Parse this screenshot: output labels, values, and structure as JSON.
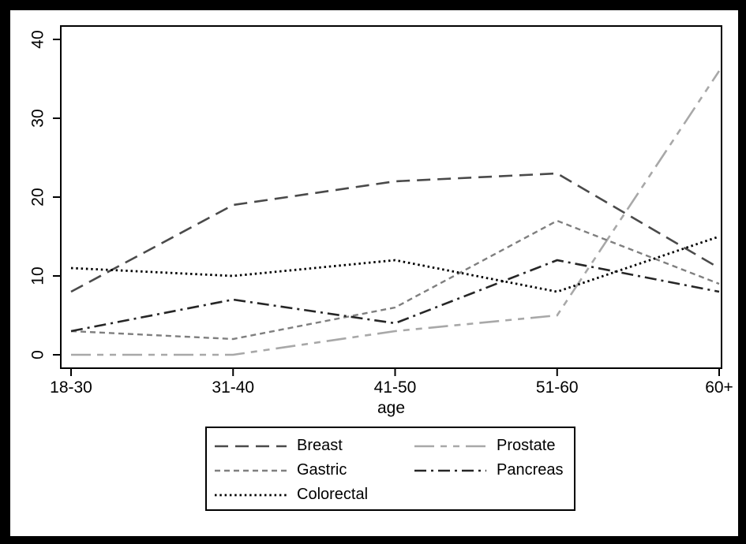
{
  "chart_data": {
    "type": "line",
    "title": "",
    "xlabel": "age",
    "ylabel": "",
    "categories": [
      "18-30",
      "31-40",
      "41-50",
      "51-60",
      "60+"
    ],
    "ylim": [
      0,
      40
    ],
    "yticks": [
      0,
      10,
      20,
      30,
      40
    ],
    "grid": false,
    "legend_position": "below-plot",
    "frame_color": "#000000",
    "background_color": "#ffffff",
    "series": [
      {
        "name": "Breast",
        "values": [
          8,
          19,
          22,
          23,
          11
        ],
        "color": "#4a4a4a",
        "dash": "17 9",
        "width": 2.6
      },
      {
        "name": "Prostate",
        "values": [
          0,
          0,
          3,
          5,
          36
        ],
        "color": "#a8a8a8",
        "dash": "25 8 8 8 8 8",
        "width": 2.6
      },
      {
        "name": "Gastric",
        "values": [
          3,
          2,
          6,
          17,
          9
        ],
        "color": "#7f7f7f",
        "dash": "7 5",
        "width": 2.4
      },
      {
        "name": "Pancreas",
        "values": [
          3,
          7,
          4,
          12,
          8
        ],
        "color": "#262626",
        "dash": "15 6 3 6",
        "width": 2.6
      },
      {
        "name": "Colorectal",
        "values": [
          11,
          10,
          12,
          8,
          15
        ],
        "color": "#000000",
        "dash": "2.5 3.8",
        "width": 2.8
      }
    ]
  }
}
